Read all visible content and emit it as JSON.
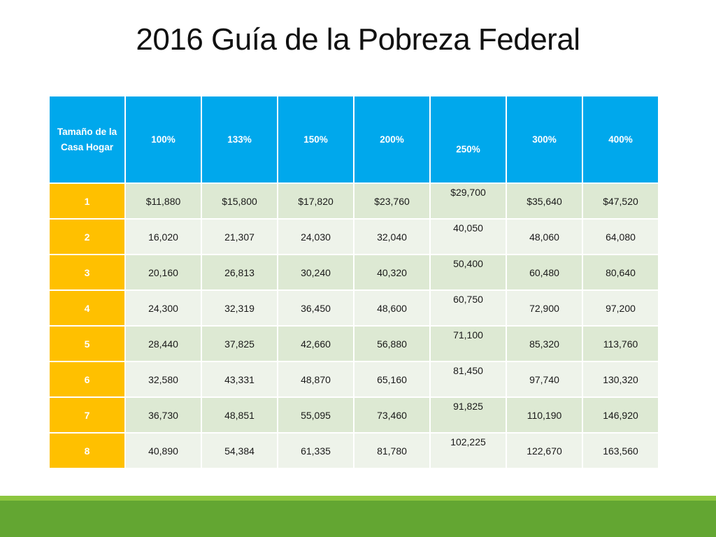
{
  "title": "2016 Guía de la Pobreza Federal",
  "table": {
    "headers": [
      "Tamaño de la Casa Hogar",
      "100%",
      "133%",
      "150%",
      "200%",
      "250%",
      "300%",
      "400%"
    ],
    "rows": [
      [
        "1",
        "$11,880",
        "$15,800",
        "$17,820",
        "$23,760",
        "$29,700",
        "$35,640",
        "$47,520"
      ],
      [
        "2",
        "16,020",
        "21,307",
        "24,030",
        "32,040",
        "40,050",
        "48,060",
        "64,080"
      ],
      [
        "3",
        "20,160",
        "26,813",
        "30,240",
        "40,320",
        "50,400",
        "60,480",
        "80,640"
      ],
      [
        "4",
        "24,300",
        "32,319",
        "36,450",
        "48,600",
        "60,750",
        "72,900",
        "97,200"
      ],
      [
        "5",
        "28,440",
        "37,825",
        "42,660",
        "56,880",
        "71,100",
        "85,320",
        "113,760"
      ],
      [
        "6",
        "32,580",
        "43,331",
        "48,870",
        "65,160",
        "81,450",
        "97,740",
        "130,320"
      ],
      [
        "7",
        "36,730",
        "48,851",
        "55,095",
        "73,460",
        "91,825",
        "110,190",
        "146,920"
      ],
      [
        "8",
        "40,890",
        "54,384",
        "61,335",
        "81,780",
        "102,225",
        "122,670",
        "163,560"
      ]
    ]
  },
  "colors": {
    "header_bg": "#00a8ec",
    "size_col_bg": "#ffc000",
    "row_odd_bg": "#dde9d3",
    "row_even_bg": "#eef3ea",
    "footer_light": "#8cc63f",
    "footer_dark": "#63a632"
  }
}
